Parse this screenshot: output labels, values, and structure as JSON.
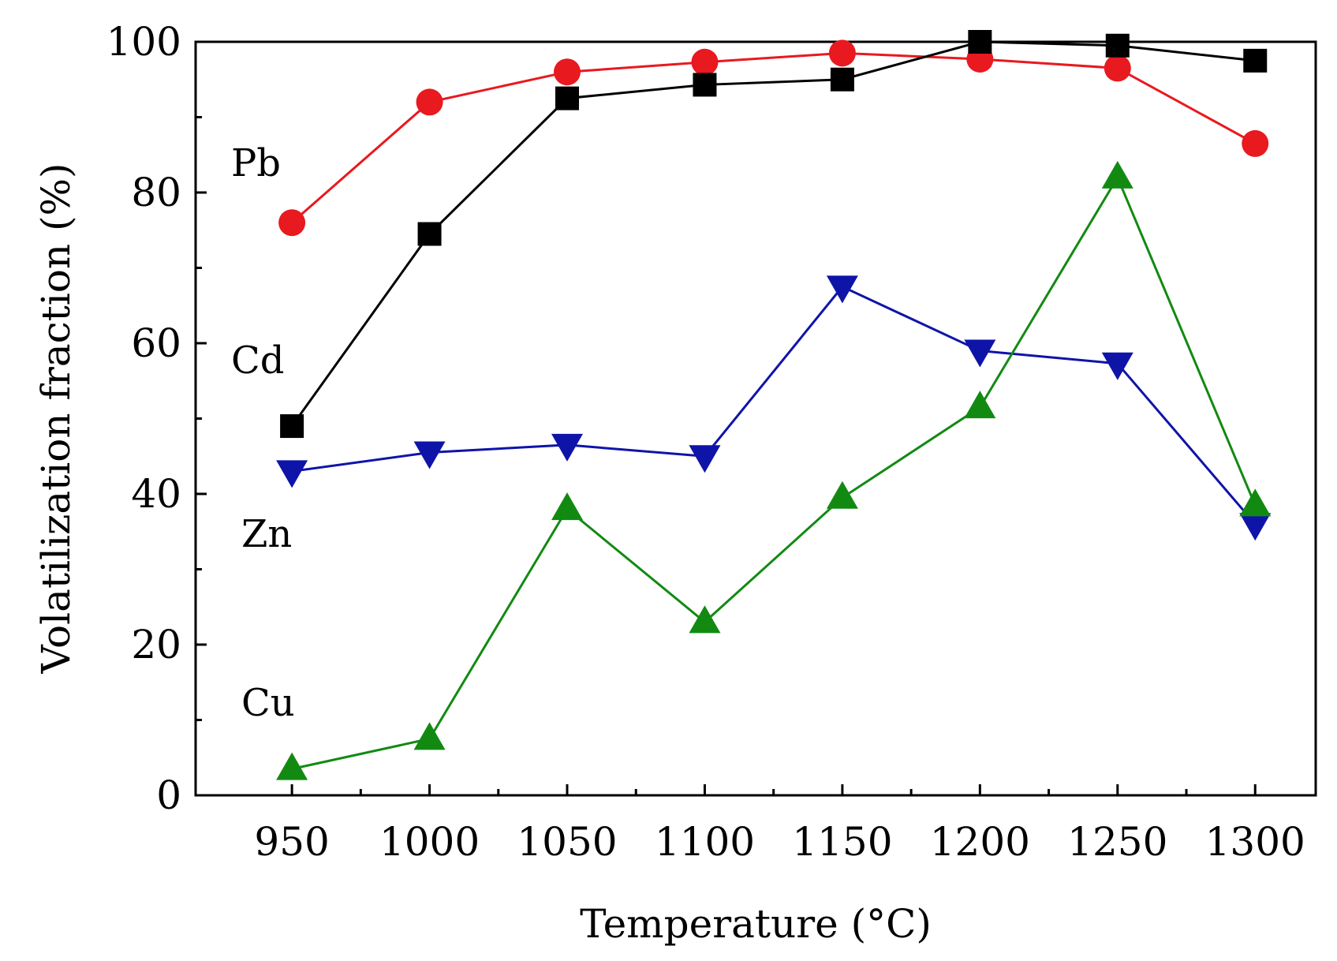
{
  "chart_data": {
    "type": "line",
    "title": "",
    "xlabel": "Temperature (°C)",
    "ylabel": "Volatilization fraction (%)",
    "x": [
      950,
      1000,
      1050,
      1100,
      1150,
      1200,
      1250,
      1300
    ],
    "xlim": [
      915,
      1322
    ],
    "ylim": [
      0,
      100
    ],
    "xticks": [
      "950",
      "1000",
      "1050",
      "1100",
      "1150",
      "1200",
      "1250",
      "1300"
    ],
    "yticks": [
      0,
      20,
      40,
      60,
      80,
      100
    ],
    "yminor": [
      10,
      30,
      50,
      70,
      90
    ],
    "grid": false,
    "legend": "none",
    "series": [
      {
        "name": "Pb",
        "label": "Pb",
        "color": "#e8191f",
        "marker": "circle",
        "values": [
          76,
          92,
          96,
          97.3,
          98.5,
          97.7,
          96.5,
          86.5
        ]
      },
      {
        "name": "Cd",
        "label": "Cd",
        "color": "#000000",
        "marker": "square",
        "values": [
          49,
          74.5,
          92.5,
          94.3,
          95,
          100,
          99.5,
          97.5
        ]
      },
      {
        "name": "Zn",
        "label": "Zn",
        "color": "#0f14a8",
        "marker": "triangle-down",
        "values": [
          43,
          45.5,
          46.5,
          45,
          67.5,
          59,
          57.3,
          36
        ]
      },
      {
        "name": "Cu",
        "label": "Cu",
        "color": "#128a12",
        "marker": "triangle-up",
        "values": [
          3.5,
          7.5,
          38,
          23,
          39.5,
          51.5,
          82,
          38.5
        ]
      }
    ]
  }
}
